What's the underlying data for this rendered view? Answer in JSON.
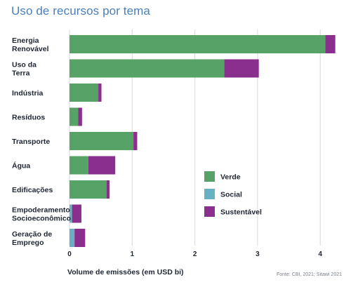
{
  "chart_data": {
    "type": "bar",
    "orientation": "horizontal",
    "stacked": true,
    "title": "Uso de recursos por tema",
    "xlabel": "Volume de emissões (em USD bi)",
    "source": "Fonte: CBI, 2021; Sitawi 2021",
    "xlim": [
      0,
      4.3
    ],
    "xticks": [
      "0",
      "1",
      "2",
      "3",
      "4"
    ],
    "categories": [
      [
        "Energia",
        "Renovável"
      ],
      [
        "Uso da",
        "Terra"
      ],
      [
        "Indústria"
      ],
      [
        "Resíduos"
      ],
      [
        "Transporte"
      ],
      [
        "Água"
      ],
      [
        "Edificações"
      ],
      [
        "Empoderamento",
        "Socioeconômico"
      ],
      [
        "Geração de",
        "Emprego"
      ]
    ],
    "series": [
      {
        "name": "Verde",
        "color": "#57a266",
        "values": [
          4.08,
          2.47,
          0.46,
          0.14,
          1.02,
          0.3,
          0.59,
          0.0,
          0.0
        ]
      },
      {
        "name": "Social",
        "color": "#6ab0c3",
        "values": [
          0.0,
          0.0,
          0.0,
          0.0,
          0.0,
          0.0,
          0.0,
          0.04,
          0.08
        ]
      },
      {
        "name": "Sustentável",
        "color": "#8b2f8f",
        "values": [
          0.16,
          0.55,
          0.05,
          0.06,
          0.06,
          0.43,
          0.05,
          0.15,
          0.17
        ]
      }
    ],
    "grid": "vertical",
    "legend_position": "bottom-right"
  }
}
